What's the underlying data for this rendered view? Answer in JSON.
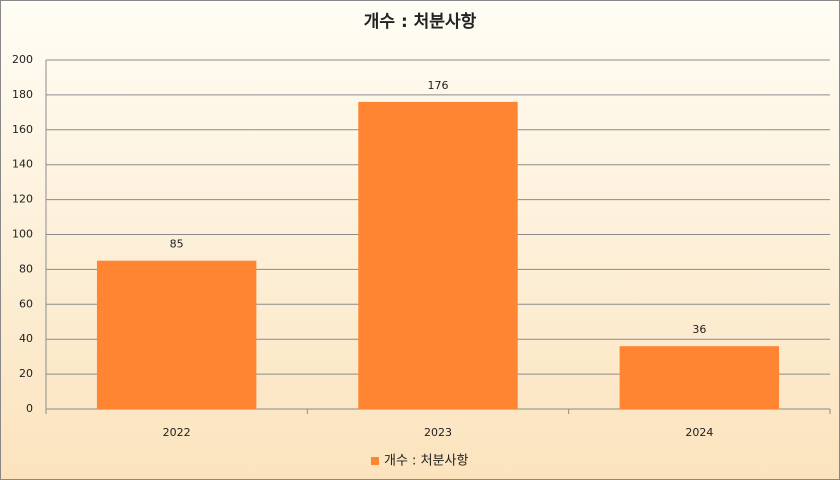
{
  "chart_data": {
    "type": "bar",
    "title": "개수 : 처분사항",
    "categories": [
      "2022",
      "2023",
      "2024"
    ],
    "series": [
      {
        "name": "개수 : 처분사항",
        "color": "#ff8533",
        "values": [
          85,
          176,
          36
        ]
      }
    ],
    "ylim": [
      0,
      200
    ],
    "yticks": [
      0,
      20,
      40,
      60,
      80,
      100,
      120,
      140,
      160,
      180,
      200
    ],
    "grid": true,
    "legend": "bottom",
    "data_labels": true
  }
}
